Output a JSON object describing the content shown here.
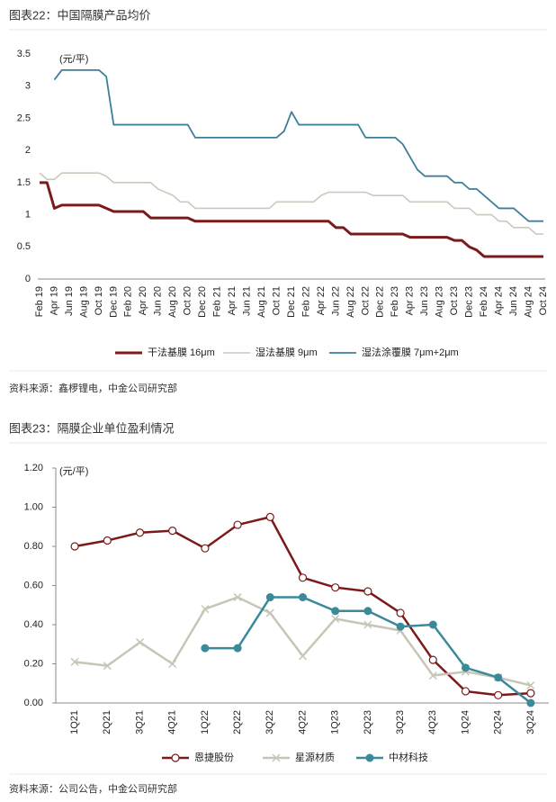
{
  "chart_data": [
    {
      "type": "line",
      "title": "图表22：中国隔膜产品均价",
      "unit_label": "(元/平)",
      "source": "资料来源：鑫椤锂电，中金公司研究部",
      "categories": [
        "Feb 19",
        null,
        "Apr 19",
        null,
        "Jun 19",
        null,
        "Aug 19",
        null,
        "Oct 19",
        null,
        "Dec 19",
        null,
        "Feb 20",
        null,
        "Apr 20",
        null,
        "Jun 20",
        null,
        "Aug 20",
        null,
        "Oct 20",
        null,
        "Dec 20",
        null,
        "Feb 21",
        null,
        "Apr 21",
        null,
        "Jun 21",
        null,
        "Aug 21",
        null,
        "Oct 21",
        null,
        "Dec 21",
        null,
        "Feb 22",
        null,
        "Apr 22",
        null,
        "Jun 22",
        null,
        "Aug 22",
        null,
        "Oct 22",
        null,
        "Dec 22",
        null,
        "Feb 23",
        null,
        "Apr 23",
        null,
        "Jun 23",
        null,
        "Aug 23",
        null,
        "Oct 23",
        null,
        "Dec 23",
        null,
        "Feb 24",
        null,
        "Apr 24",
        null,
        "Jun 24",
        null,
        "Aug 24",
        null,
        "Oct 24"
      ],
      "series": [
        {
          "name": "干法基膜 16μm",
          "color": "#7b1a1a",
          "width": 3,
          "values": [
            1.5,
            1.5,
            1.1,
            1.15,
            1.15,
            1.15,
            1.15,
            1.15,
            1.15,
            1.1,
            1.05,
            1.05,
            1.05,
            1.05,
            1.05,
            0.95,
            0.95,
            0.95,
            0.95,
            0.95,
            0.95,
            0.9,
            0.9,
            0.9,
            0.9,
            0.9,
            0.9,
            0.9,
            0.9,
            0.9,
            0.9,
            0.9,
            0.9,
            0.9,
            0.9,
            0.9,
            0.9,
            0.9,
            0.9,
            0.9,
            0.8,
            0.8,
            0.7,
            0.7,
            0.7,
            0.7,
            0.7,
            0.7,
            0.7,
            0.7,
            0.65,
            0.65,
            0.65,
            0.65,
            0.65,
            0.65,
            0.6,
            0.6,
            0.5,
            0.45,
            0.35,
            0.35,
            0.35,
            0.35,
            0.35,
            0.35,
            0.35,
            0.35,
            0.35
          ]
        },
        {
          "name": "湿法基膜 9μm",
          "color": "#c9c9bd",
          "width": 1.6,
          "values": [
            1.65,
            1.55,
            1.55,
            1.65,
            1.65,
            1.65,
            1.65,
            1.65,
            1.65,
            1.6,
            1.5,
            1.5,
            1.5,
            1.5,
            1.5,
            1.5,
            1.4,
            1.35,
            1.3,
            1.2,
            1.2,
            1.1,
            1.1,
            1.1,
            1.1,
            1.1,
            1.1,
            1.1,
            1.1,
            1.1,
            1.1,
            1.1,
            1.2,
            1.2,
            1.2,
            1.2,
            1.2,
            1.2,
            1.3,
            1.35,
            1.35,
            1.35,
            1.35,
            1.35,
            1.35,
            1.3,
            1.3,
            1.3,
            1.3,
            1.3,
            1.2,
            1.2,
            1.2,
            1.2,
            1.2,
            1.2,
            1.1,
            1.1,
            1.1,
            1.0,
            1.0,
            1.0,
            0.9,
            0.9,
            0.8,
            0.8,
            0.8,
            0.7,
            0.7
          ]
        },
        {
          "name": "湿法涂覆膜 7μm+2μm",
          "color": "#3d7f99",
          "width": 1.8,
          "values": [
            null,
            null,
            3.1,
            3.25,
            3.25,
            3.25,
            3.25,
            3.25,
            3.25,
            3.15,
            2.4,
            2.4,
            2.4,
            2.4,
            2.4,
            2.4,
            2.4,
            2.4,
            2.4,
            2.4,
            2.4,
            2.2,
            2.2,
            2.2,
            2.2,
            2.2,
            2.2,
            2.2,
            2.2,
            2.2,
            2.2,
            2.2,
            2.2,
            2.3,
            2.6,
            2.4,
            2.4,
            2.4,
            2.4,
            2.4,
            2.4,
            2.4,
            2.4,
            2.4,
            2.2,
            2.2,
            2.2,
            2.2,
            2.2,
            2.1,
            1.9,
            1.7,
            1.6,
            1.6,
            1.6,
            1.6,
            1.5,
            1.5,
            1.4,
            1.4,
            1.3,
            1.2,
            1.1,
            1.1,
            1.1,
            1.0,
            0.9,
            0.9,
            0.9
          ]
        }
      ],
      "ylim": [
        0,
        3.5
      ],
      "yticks": [
        0,
        0.5,
        1,
        1.5,
        2,
        2.5,
        3,
        3.5
      ]
    },
    {
      "type": "line",
      "title": "图表23：隔膜企业单位盈利情况",
      "unit_label": "(元/平)",
      "source": "资料来源：公司公告，中金公司研究部",
      "categories": [
        "1Q21",
        "2Q21",
        "3Q21",
        "4Q21",
        "1Q22",
        "2Q22",
        "3Q22",
        "4Q22",
        "1Q23",
        "2Q23",
        "3Q23",
        "4Q23",
        "1Q24",
        "2Q24",
        "3Q24"
      ],
      "series": [
        {
          "name": "恩捷股份",
          "color": "#7b1a1a",
          "width": 2.5,
          "marker": "circle-open",
          "values": [
            0.8,
            0.83,
            0.87,
            0.88,
            0.79,
            0.91,
            0.95,
            0.64,
            0.59,
            0.57,
            0.46,
            0.22,
            0.06,
            0.04,
            0.05
          ]
        },
        {
          "name": "星源材质",
          "color": "#c6c6b6",
          "width": 2.5,
          "marker": "x",
          "values": [
            0.21,
            0.19,
            0.31,
            0.2,
            0.48,
            0.54,
            0.46,
            0.24,
            0.43,
            0.4,
            0.37,
            0.14,
            0.16,
            0.13,
            0.09
          ]
        },
        {
          "name": "中材科技",
          "color": "#3b8a9a",
          "width": 2.5,
          "marker": "circle",
          "values": [
            null,
            null,
            null,
            null,
            0.28,
            0.28,
            0.54,
            0.54,
            0.47,
            0.47,
            0.39,
            0.4,
            0.18,
            0.13,
            0.0
          ]
        }
      ],
      "ylim": [
        0,
        1.2
      ],
      "yticks": [
        {
          "value": 0,
          "label": "0.00"
        },
        {
          "value": 0.2,
          "label": "0.20"
        },
        {
          "value": 0.4,
          "label": "0.40"
        },
        {
          "value": 0.6,
          "label": "0.60"
        },
        {
          "value": 0.8,
          "label": "0.80"
        },
        {
          "value": 1.0,
          "label": "1.00"
        },
        {
          "value": 1.2,
          "label": "1.20"
        }
      ]
    }
  ]
}
